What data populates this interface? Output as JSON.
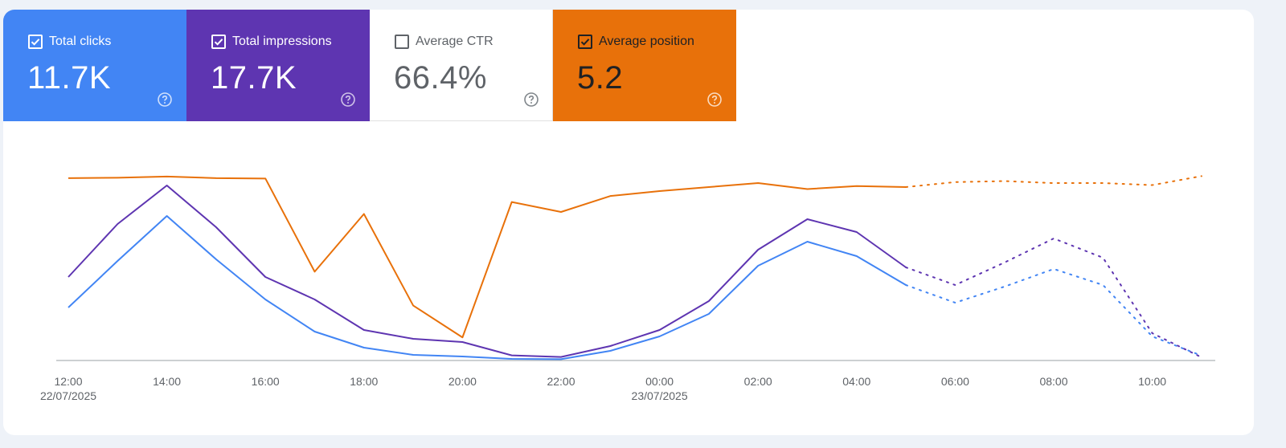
{
  "metrics": [
    {
      "key": "clicks",
      "label": "Total clicks",
      "value": "11.7K",
      "checked": true,
      "color": "#4285f4"
    },
    {
      "key": "impressions",
      "label": "Total impressions",
      "value": "17.7K",
      "checked": true,
      "color": "#5e35b1"
    },
    {
      "key": "ctr",
      "label": "Average CTR",
      "value": "66.4%",
      "checked": false,
      "color": "#ffffff"
    },
    {
      "key": "position",
      "label": "Average position",
      "value": "5.2",
      "checked": true,
      "color": "#e8710a"
    }
  ],
  "chart_data": {
    "type": "line",
    "x": [
      "12:00",
      "13:00",
      "14:00",
      "15:00",
      "16:00",
      "17:00",
      "18:00",
      "19:00",
      "20:00",
      "21:00",
      "22:00",
      "23:00",
      "00:00",
      "01:00",
      "02:00",
      "03:00",
      "04:00",
      "05:00",
      "06:00",
      "07:00",
      "08:00",
      "09:00",
      "10:00",
      "11:00"
    ],
    "x_ticks": [
      {
        "label": "12:00",
        "sub": "22/07/2025"
      },
      {
        "label": "14:00",
        "sub": ""
      },
      {
        "label": "16:00",
        "sub": ""
      },
      {
        "label": "18:00",
        "sub": ""
      },
      {
        "label": "20:00",
        "sub": ""
      },
      {
        "label": "22:00",
        "sub": ""
      },
      {
        "label": "00:00",
        "sub": "23/07/2025"
      },
      {
        "label": "02:00",
        "sub": ""
      },
      {
        "label": "04:00",
        "sub": ""
      },
      {
        "label": "06:00",
        "sub": ""
      },
      {
        "label": "08:00",
        "sub": ""
      },
      {
        "label": "10:00",
        "sub": ""
      }
    ],
    "projected_from_index": 17,
    "series": [
      {
        "key": "clicks",
        "color": "#4285f4",
        "values": [
          33,
          62,
          90,
          63,
          38,
          18,
          8,
          3.5,
          2.5,
          1,
          0.8,
          6,
          15,
          29,
          59,
          74,
          65,
          47,
          36,
          46,
          57,
          47,
          15,
          3
        ]
      },
      {
        "key": "impressions",
        "color": "#5e35b1",
        "values": [
          52,
          85,
          109,
          83,
          52,
          38,
          19,
          13.5,
          11.5,
          3.2,
          2.2,
          9,
          19,
          37,
          69,
          88,
          80,
          58,
          47,
          61,
          76,
          64,
          17,
          2
        ]
      },
      {
        "key": "position",
        "color": "#e8710a",
        "values": [
          1.8,
          1.78,
          1.72,
          1.8,
          1.82,
          6.5,
          3.6,
          8.2,
          9.8,
          3.0,
          3.5,
          2.7,
          2.45,
          2.25,
          2.05,
          2.35,
          2.2,
          2.25,
          2.0,
          1.95,
          2.05,
          2.05,
          2.15,
          1.7
        ]
      }
    ],
    "ylim_clicks": [
      0,
      120
    ],
    "ylim_position": [
      1,
      11
    ],
    "grid": false
  }
}
